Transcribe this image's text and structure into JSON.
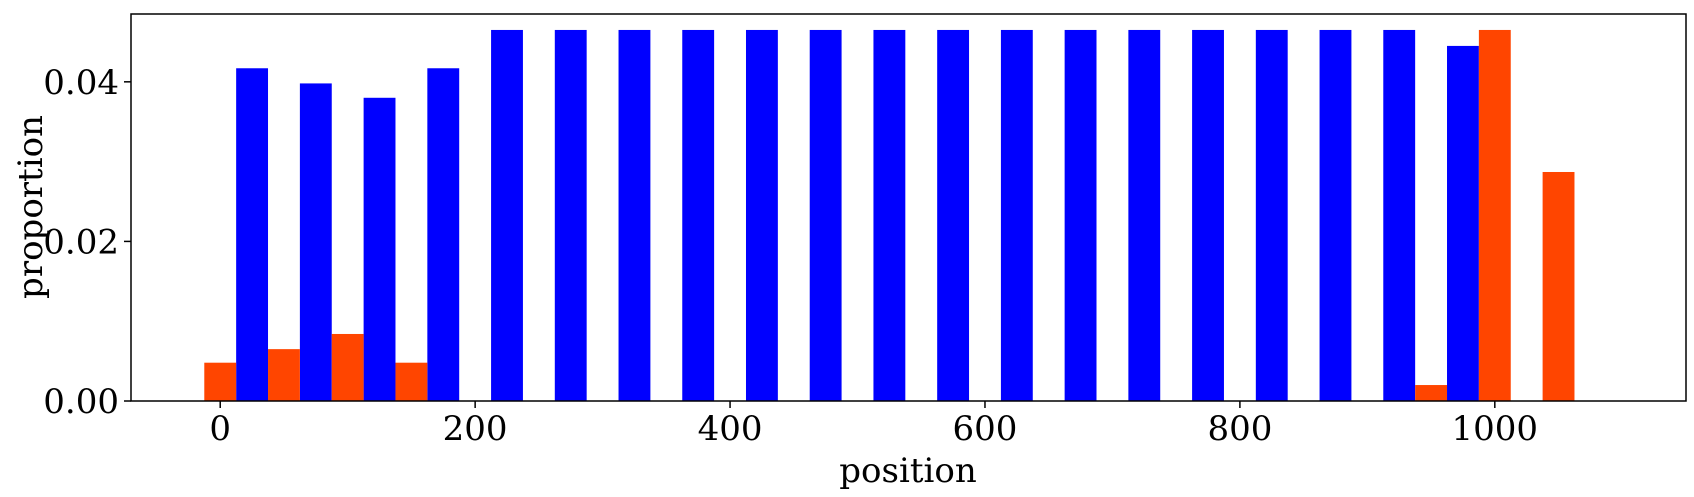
{
  "chart_data": {
    "type": "bar",
    "xlabel": "position",
    "ylabel": "proportion",
    "xlim": [
      -70,
      1150
    ],
    "ylim": [
      0,
      0.0485
    ],
    "bar_width": 25,
    "xticks": [
      0,
      200,
      400,
      600,
      800,
      1000
    ],
    "xtick_labels": [
      "0",
      "200",
      "400",
      "600",
      "800",
      "1000"
    ],
    "yticks": [
      0,
      0.02,
      0.04
    ],
    "ytick_labels": [
      "0.00",
      "0.02",
      "0.04"
    ],
    "grid": false,
    "legend": "none",
    "series": [
      {
        "color": "#0000ff",
        "x": [
          25,
          75,
          125,
          175,
          225,
          275,
          325,
          375,
          425,
          475,
          525,
          575,
          625,
          675,
          725,
          775,
          825,
          875,
          925,
          975
        ],
        "values": [
          0.0417,
          0.0398,
          0.038,
          0.0417,
          0.0465,
          0.0465,
          0.0465,
          0.0465,
          0.0465,
          0.0465,
          0.0465,
          0.0465,
          0.0465,
          0.0465,
          0.0465,
          0.0465,
          0.0465,
          0.0465,
          0.0465,
          0.0445
        ]
      },
      {
        "color": "#ff4500",
        "x": [
          0,
          50,
          100,
          150,
          950,
          1000,
          1050
        ],
        "values": [
          0.0048,
          0.0065,
          0.0084,
          0.0048,
          0.002,
          0.0465,
          0.0287
        ]
      }
    ]
  }
}
